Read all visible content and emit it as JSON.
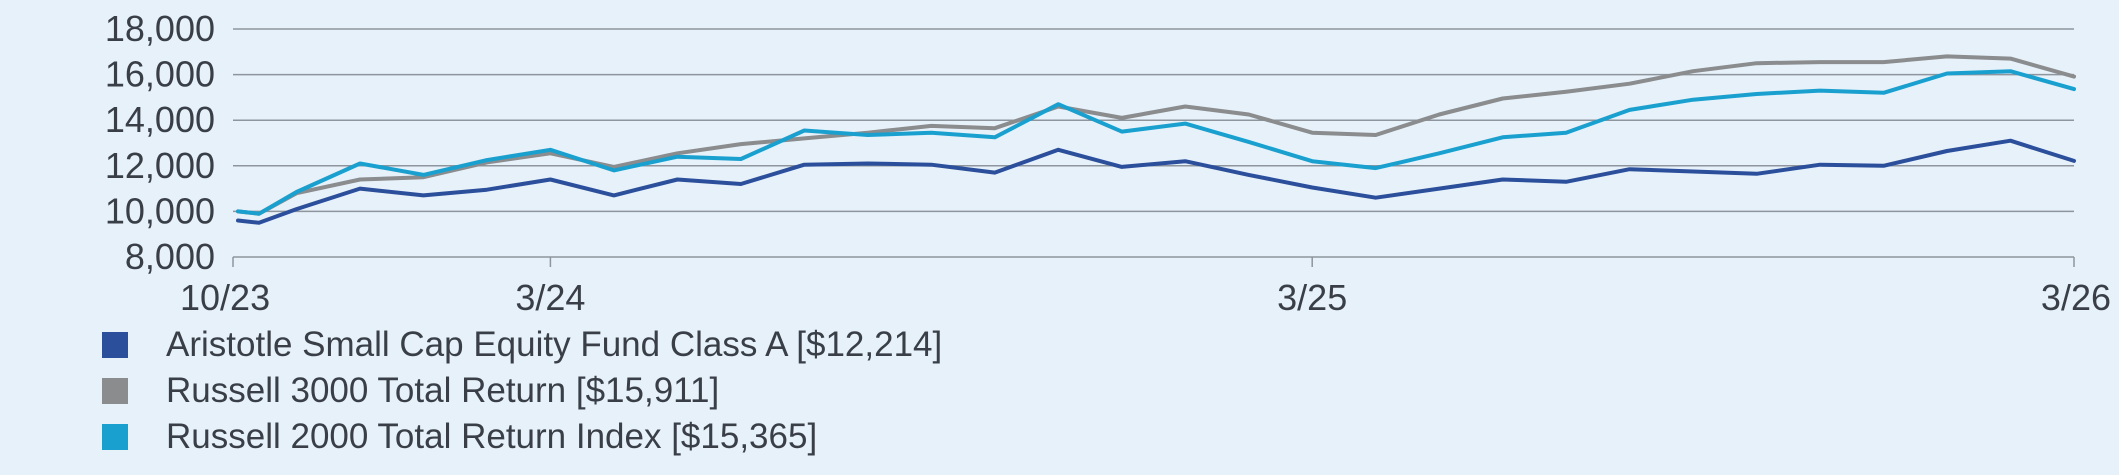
{
  "chart_data": {
    "type": "line",
    "title": "",
    "xlabel": "",
    "ylabel": "",
    "ylim": [
      8000,
      18000
    ],
    "yticks": [
      8000,
      10000,
      12000,
      14000,
      16000,
      18000
    ],
    "ytick_labels": [
      "8,000",
      "10,000",
      "12,000",
      "14,000",
      "16,000",
      "18,000"
    ],
    "xlim": [
      "2023-10",
      "2026-03"
    ],
    "xticks": [
      {
        "x": "2023-10",
        "label": "10/23"
      },
      {
        "x": "2024-03",
        "label": "3/24"
      },
      {
        "x": "2025-03",
        "label": "3/25"
      },
      {
        "x": "2026-03",
        "label": "3/26"
      }
    ],
    "grid": "horizontal",
    "legend_position": "bottom-left",
    "x": [
      "2023-10",
      "2023-10",
      "2023-11",
      "2023-12",
      "2024-01",
      "2024-02",
      "2024-03",
      "2024-04",
      "2024-05",
      "2024-06",
      "2024-07",
      "2024-08",
      "2024-09",
      "2024-10",
      "2024-11",
      "2024-12",
      "2025-01",
      "2025-02",
      "2025-03",
      "2025-04",
      "2025-05",
      "2025-06",
      "2025-07",
      "2025-08",
      "2025-09",
      "2025-10",
      "2025-11",
      "2025-12",
      "2026-01",
      "2026-02",
      "2026-03"
    ],
    "series": [
      {
        "name": "Aristotle Small Cap Equity Fund Class A [$12,214]",
        "color": "#2c4f9c",
        "values": [
          9600,
          9500,
          10100,
          11000,
          10700,
          10950,
          11400,
          10700,
          11400,
          11200,
          12050,
          12100,
          12050,
          11700,
          12700,
          11950,
          12200,
          11600,
          11050,
          10600,
          11000,
          11400,
          11300,
          11850,
          11750,
          11650,
          12050,
          12000,
          12650,
          13100,
          12214
        ]
      },
      {
        "name": "Russell 3000 Total Return [$15,911]",
        "color": "#8a8c8e",
        "values": [
          10000,
          9900,
          10800,
          11400,
          11500,
          12150,
          12550,
          11950,
          12550,
          12950,
          13200,
          13450,
          13750,
          13650,
          14600,
          14100,
          14600,
          14250,
          13450,
          13350,
          14250,
          14950,
          15250,
          15600,
          16150,
          16500,
          16550,
          16550,
          16800,
          16700,
          15911
        ]
      },
      {
        "name": "Russell 2000 Total Return Index [$15,365]",
        "color": "#1aa0cf",
        "values": [
          10000,
          9900,
          10850,
          12100,
          11600,
          12250,
          12700,
          11800,
          12400,
          12300,
          13550,
          13350,
          13450,
          13250,
          14700,
          13500,
          13850,
          13050,
          12200,
          11900,
          12550,
          13250,
          13450,
          14450,
          14900,
          15150,
          15300,
          15200,
          16050,
          16150,
          15365
        ]
      }
    ]
  }
}
